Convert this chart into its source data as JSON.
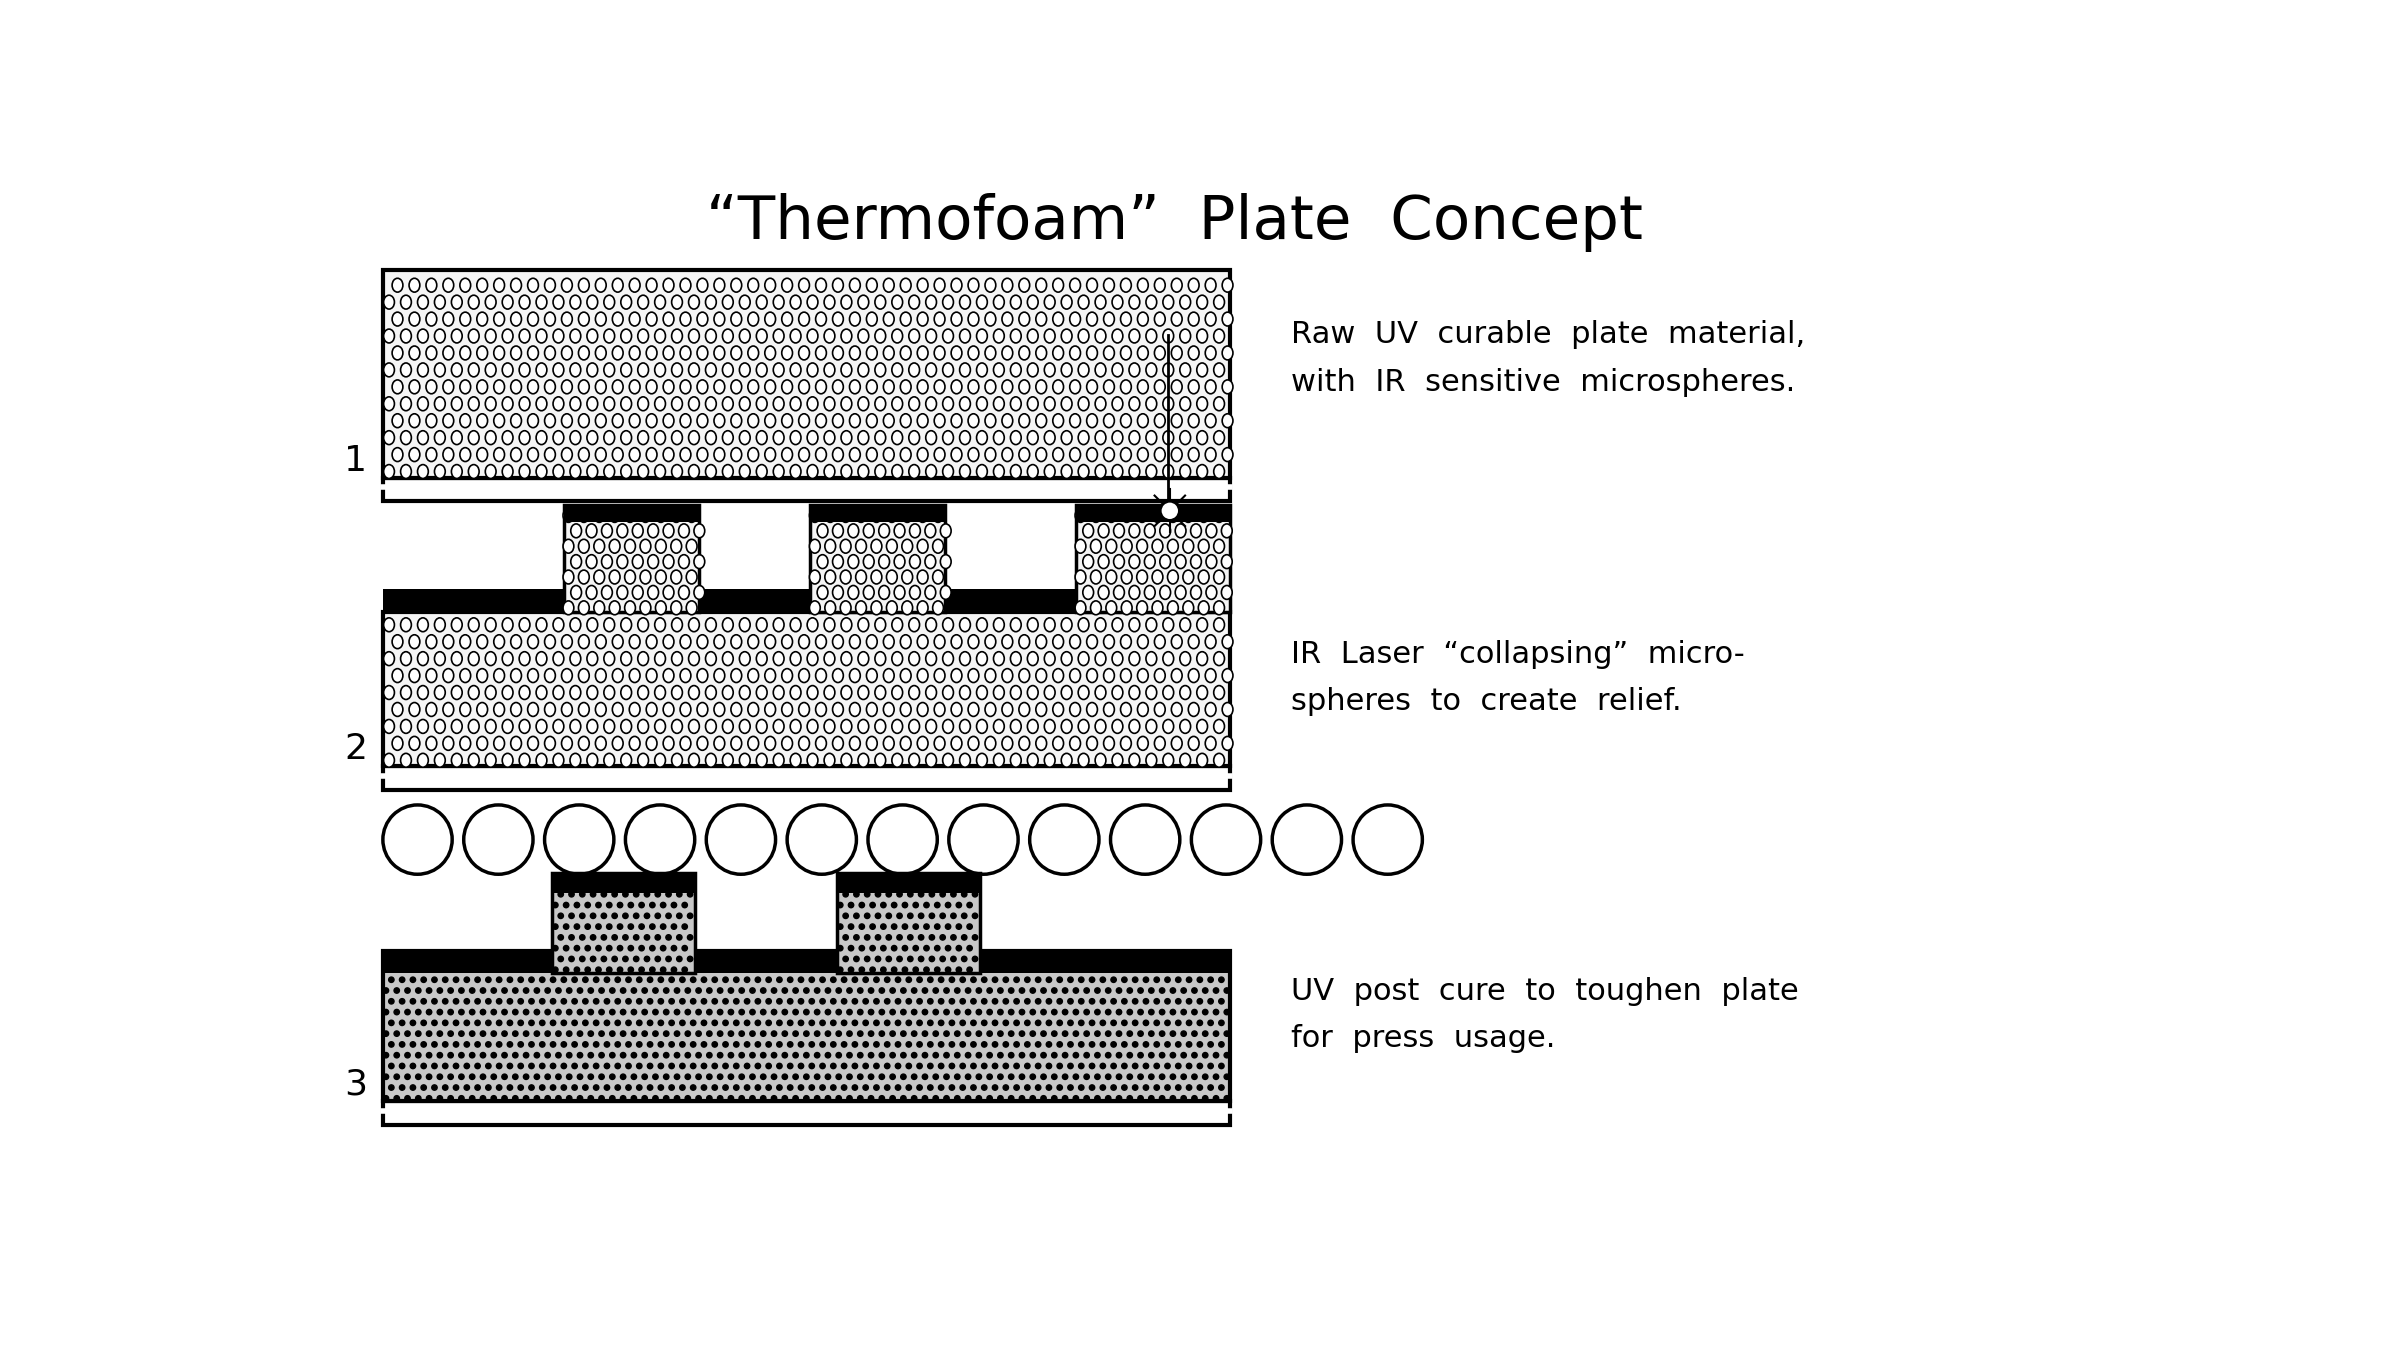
{
  "title": "“Thermofoam”  Plate  Concept",
  "bg_color": "#ffffff",
  "label1": "Raw  UV  curable  plate  material,\nwith  IR  sensitive  microspheres.",
  "label2": "IR  Laser  “collapsing”  micro-\nspheres  to  create  relief.",
  "label3": "UV  post  cure  to  toughen  plate\nfor  press  usage.",
  "title_fontsize": 44,
  "label_fontsize": 22,
  "step_fontsize": 26
}
